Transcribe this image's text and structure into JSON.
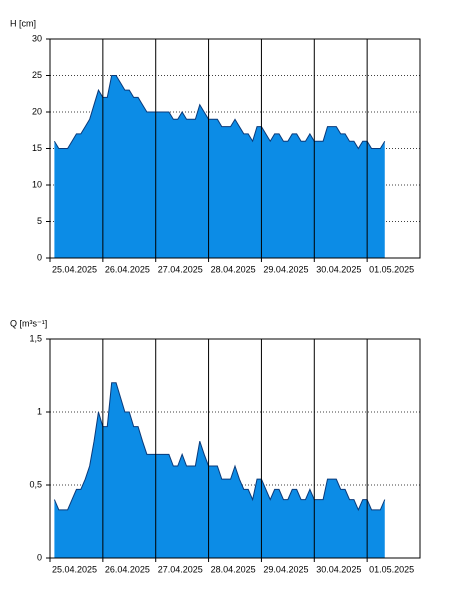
{
  "chart_data": [
    {
      "type": "area",
      "ylabel": "H [cm]",
      "categories": [
        "25.04.2025",
        null,
        null,
        null,
        null,
        null,
        null,
        null,
        null,
        null,
        null,
        null,
        "26.04.2025",
        null,
        null,
        null,
        null,
        null,
        null,
        null,
        null,
        null,
        null,
        null,
        "27.04.2025",
        null,
        null,
        null,
        null,
        null,
        null,
        null,
        null,
        null,
        null,
        null,
        "28.04.2025",
        null,
        null,
        null,
        null,
        null,
        null,
        null,
        null,
        null,
        null,
        null,
        "29.04.2025",
        null,
        null,
        null,
        null,
        null,
        null,
        null,
        null,
        null,
        null,
        null,
        "30.04.2025",
        null,
        null,
        null,
        null,
        null,
        null,
        null,
        null,
        null,
        null,
        null,
        "01.05.2025",
        null,
        null,
        null,
        null,
        null,
        null,
        null,
        null,
        null,
        null,
        null
      ],
      "values": [
        null,
        16,
        15,
        15,
        15,
        16,
        17,
        17,
        18,
        19,
        21,
        23,
        22,
        22,
        25,
        25,
        24,
        23,
        23,
        22,
        22,
        21,
        20,
        20,
        20,
        20,
        20,
        20,
        19,
        19,
        20,
        19,
        19,
        19,
        21,
        20,
        19,
        19,
        19,
        18,
        18,
        18,
        19,
        18,
        17,
        17,
        16,
        18,
        18,
        17,
        16,
        17,
        17,
        16,
        16,
        17,
        17,
        16,
        16,
        17,
        16,
        16,
        16,
        18,
        18,
        18,
        17,
        17,
        16,
        16,
        15,
        16,
        16,
        15,
        15,
        15,
        16,
        null,
        null,
        null,
        null,
        null,
        null,
        null
      ],
      "color": "#0c8ce6",
      "ylim": [
        0,
        30
      ],
      "yticks": [
        0,
        5,
        10,
        15,
        20,
        25,
        30
      ],
      "grid": true
    },
    {
      "type": "area",
      "ylabel": "Q [m³s⁻¹]",
      "categories": [
        "25.04.2025",
        null,
        null,
        null,
        null,
        null,
        null,
        null,
        null,
        null,
        null,
        null,
        "26.04.2025",
        null,
        null,
        null,
        null,
        null,
        null,
        null,
        null,
        null,
        null,
        null,
        "27.04.2025",
        null,
        null,
        null,
        null,
        null,
        null,
        null,
        null,
        null,
        null,
        null,
        "28.04.2025",
        null,
        null,
        null,
        null,
        null,
        null,
        null,
        null,
        null,
        null,
        null,
        "29.04.2025",
        null,
        null,
        null,
        null,
        null,
        null,
        null,
        null,
        null,
        null,
        null,
        "30.04.2025",
        null,
        null,
        null,
        null,
        null,
        null,
        null,
        null,
        null,
        null,
        null,
        "01.05.2025",
        null,
        null,
        null,
        null,
        null,
        null,
        null,
        null,
        null,
        null,
        null
      ],
      "values": [
        null,
        0.4,
        0.33,
        0.33,
        0.33,
        0.4,
        0.47,
        0.47,
        0.54,
        0.63,
        0.8,
        1,
        0.9,
        0.9,
        1.2,
        1.2,
        1.1,
        1,
        1,
        0.9,
        0.9,
        0.8,
        0.71,
        0.71,
        0.71,
        0.71,
        0.71,
        0.71,
        0.63,
        0.63,
        0.71,
        0.63,
        0.63,
        0.63,
        0.8,
        0.71,
        0.63,
        0.63,
        0.63,
        0.54,
        0.54,
        0.54,
        0.63,
        0.54,
        0.47,
        0.47,
        0.4,
        0.54,
        0.54,
        0.47,
        0.4,
        0.47,
        0.47,
        0.4,
        0.4,
        0.47,
        0.47,
        0.4,
        0.4,
        0.47,
        0.4,
        0.4,
        0.4,
        0.54,
        0.54,
        0.54,
        0.47,
        0.47,
        0.4,
        0.4,
        0.33,
        0.4,
        0.4,
        0.33,
        0.33,
        0.33,
        0.4,
        null,
        null,
        null,
        null,
        null,
        null,
        null
      ],
      "color": "#0c8ce6",
      "ylim": [
        0,
        1.5
      ],
      "yticks": [
        0,
        {
          "value": 0.5,
          "label": "0,5"
        },
        1,
        {
          "value": 1.5,
          "label": "1,5"
        }
      ],
      "grid": true
    }
  ]
}
